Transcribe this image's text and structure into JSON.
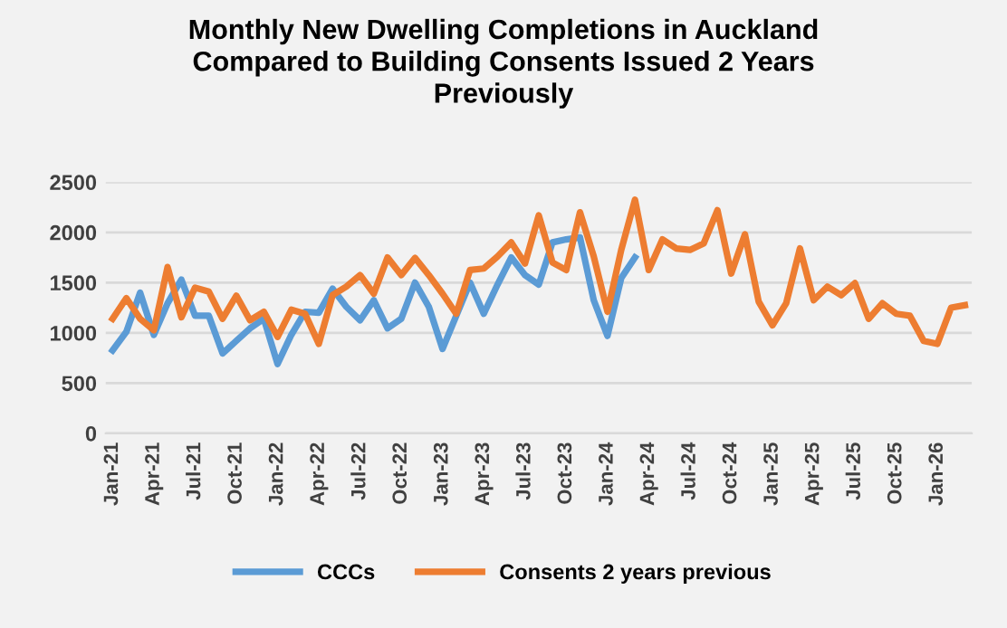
{
  "chart_data": {
    "type": "line",
    "title": "Monthly New Dwelling Completions in Auckland\nCompared to Building Consents Issued 2 Years\nPreviously",
    "categories": [
      "Jan-21",
      null,
      null,
      "Apr-21",
      null,
      null,
      "Jul-21",
      null,
      null,
      "Oct-21",
      null,
      null,
      "Jan-22",
      null,
      null,
      "Apr-22",
      null,
      null,
      "Jul-22",
      null,
      null,
      "Oct-22",
      null,
      null,
      "Jan-23",
      null,
      null,
      "Apr-23",
      null,
      null,
      "Jul-23",
      null,
      null,
      "Oct-23",
      null,
      null,
      "Jan-24",
      null,
      null,
      "Apr-24",
      null,
      null,
      "Jul-24",
      null,
      null,
      "Oct-24",
      null,
      null,
      "Jan-25",
      null,
      null,
      "Apr-25",
      null,
      null,
      "Jul-25",
      null,
      null,
      "Oct-25",
      null,
      null,
      "Jan-26",
      null,
      null
    ],
    "series": [
      {
        "name": "CCCs",
        "color": "#5b9bd5",
        "values": [
          825,
          1010,
          1400,
          980,
          1295,
          1530,
          1170,
          1170,
          795,
          920,
          1045,
          1140,
          690,
          980,
          1210,
          1200,
          1440,
          1260,
          1125,
          1325,
          1045,
          1140,
          1500,
          1260,
          840,
          1170,
          1500,
          1190,
          1480,
          1750,
          1575,
          1480,
          1900,
          1930,
          1950,
          1325,
          970,
          1545,
          1750,
          null,
          null,
          null,
          null,
          null,
          null,
          null,
          null,
          null,
          null,
          null,
          null,
          null,
          null,
          null,
          null,
          null,
          null,
          null,
          null,
          null,
          null,
          null,
          null
        ]
      },
      {
        "name": "Consents 2 years previous",
        "color": "#ed7d31",
        "values": [
          1140,
          1345,
          1140,
          1025,
          1655,
          1155,
          1450,
          1410,
          1140,
          1370,
          1125,
          1210,
          960,
          1230,
          1190,
          890,
          1375,
          1460,
          1575,
          1390,
          1750,
          1575,
          1745,
          1575,
          1390,
          1190,
          1625,
          1640,
          1760,
          1900,
          1690,
          2170,
          1700,
          1625,
          2200,
          1760,
          1210,
          1825,
          2325,
          1625,
          1930,
          1840,
          1825,
          1890,
          2220,
          1590,
          1980,
          1310,
          1075,
          1295,
          1840,
          1325,
          1460,
          1375,
          1495,
          1140,
          1295,
          1190,
          1170,
          920,
          890,
          1250,
          1275
        ]
      }
    ],
    "ylim": [
      0,
      2500
    ],
    "yticks": [
      0,
      500,
      1000,
      1500,
      2000,
      2500
    ],
    "grid": "y",
    "legend": "bottom",
    "line_style": "solid",
    "marker": "none"
  }
}
